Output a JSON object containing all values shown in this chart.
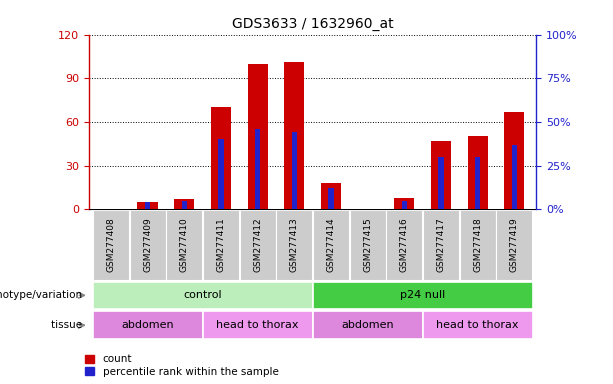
{
  "title": "GDS3633 / 1632960_at",
  "samples": [
    "GSM277408",
    "GSM277409",
    "GSM277410",
    "GSM277411",
    "GSM277412",
    "GSM277413",
    "GSM277414",
    "GSM277415",
    "GSM277416",
    "GSM277417",
    "GSM277418",
    "GSM277419"
  ],
  "counts": [
    0,
    5,
    7,
    70,
    100,
    101,
    18,
    0,
    8,
    47,
    50,
    67
  ],
  "percentile_ranks": [
    0,
    4,
    5,
    40,
    46,
    44,
    12,
    0,
    5,
    30,
    30,
    37
  ],
  "ylim_left": [
    0,
    120
  ],
  "ylim_right": [
    0,
    100
  ],
  "yticks_left": [
    0,
    30,
    60,
    90,
    120
  ],
  "yticks_right": [
    0,
    25,
    50,
    75,
    100
  ],
  "ytick_labels_left": [
    "0",
    "30",
    "60",
    "90",
    "120"
  ],
  "ytick_labels_right": [
    "0%",
    "25%",
    "50%",
    "75%",
    "100%"
  ],
  "bar_color": "#cc0000",
  "percentile_color": "#2222cc",
  "left_axis_color": "#cc0000",
  "right_axis_color": "#2222cc",
  "genotype_groups": [
    {
      "label": "control",
      "start": 0,
      "end": 5,
      "color": "#bbeebb"
    },
    {
      "label": "p24 null",
      "start": 6,
      "end": 11,
      "color": "#44cc44"
    }
  ],
  "tissue_groups": [
    {
      "label": "abdomen",
      "start": 0,
      "end": 2,
      "color": "#dd88dd"
    },
    {
      "label": "head to thorax",
      "start": 3,
      "end": 5,
      "color": "#ee99ee"
    },
    {
      "label": "abdomen",
      "start": 6,
      "end": 8,
      "color": "#dd88dd"
    },
    {
      "label": "head to thorax",
      "start": 9,
      "end": 11,
      "color": "#ee99ee"
    }
  ],
  "legend_count_label": "count",
  "legend_percentile_label": "percentile rank within the sample",
  "genotype_row_label": "genotype/variation",
  "tissue_row_label": "tissue",
  "bar_width": 0.55,
  "pct_bar_width": 0.15,
  "xtick_bg_color": "#cccccc",
  "fig_bg": "#ffffff"
}
